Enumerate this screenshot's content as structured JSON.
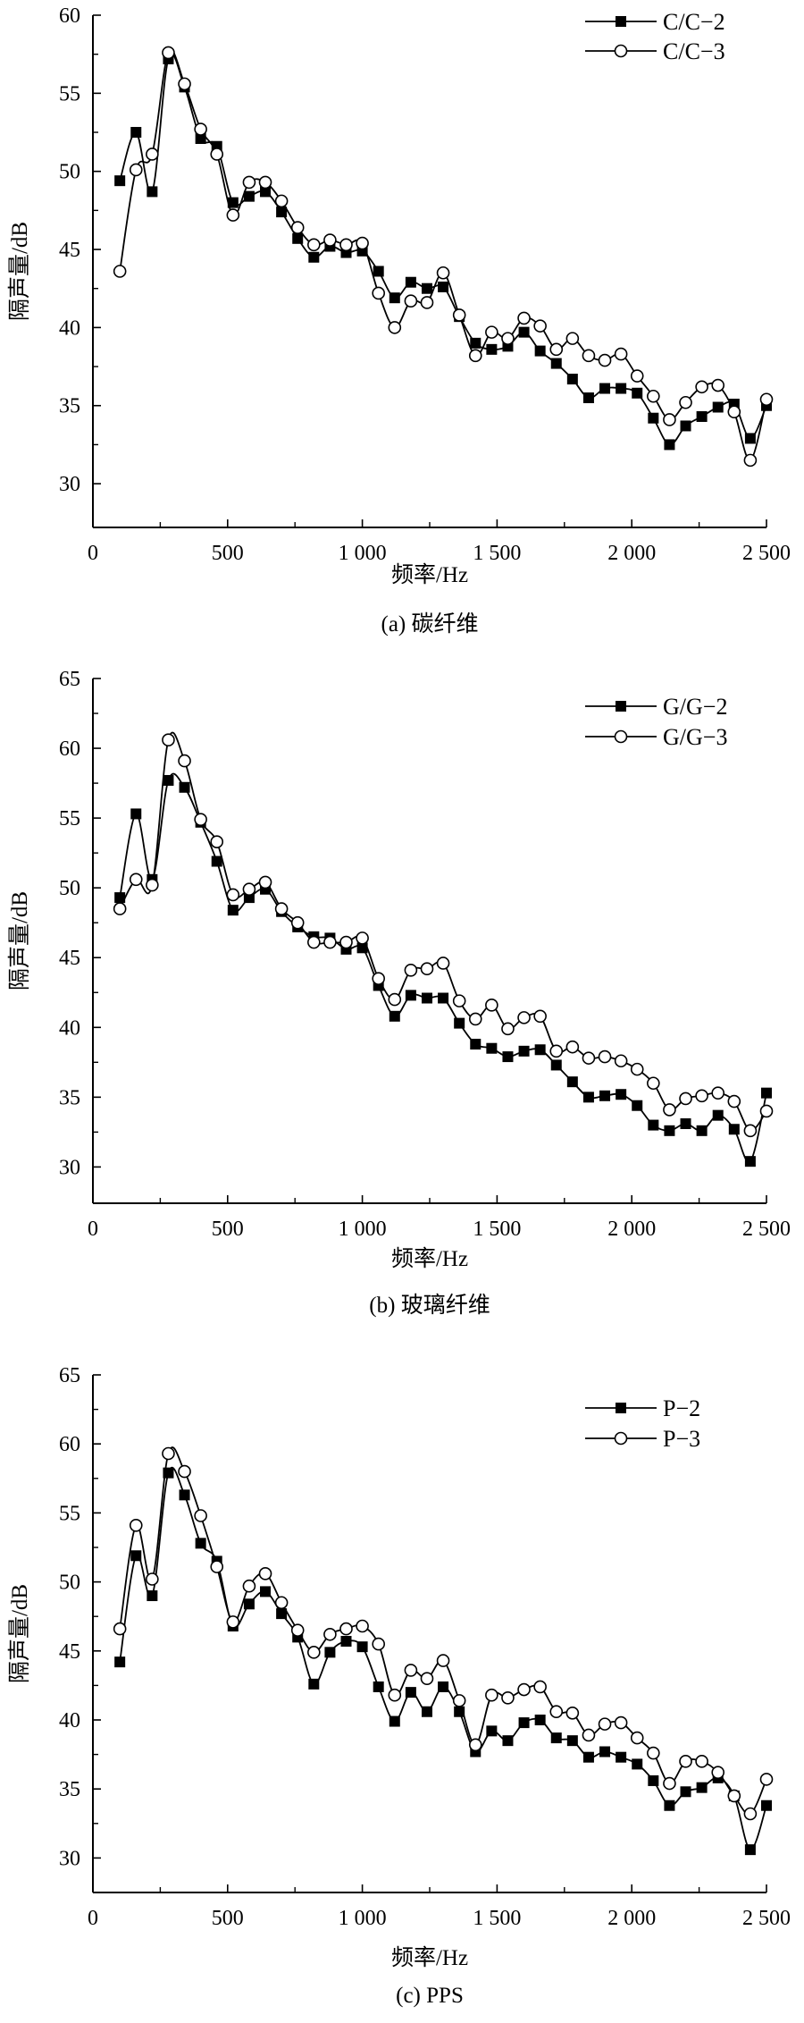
{
  "chart_data": [
    {
      "type": "line",
      "title": "(a) 碳纤维",
      "xlabel": "频率/Hz",
      "ylabel": "隔声量/dB",
      "xlim": [
        0,
        2500
      ],
      "ylim": [
        27.2,
        60
      ],
      "xticks": [
        0,
        500,
        1000,
        1500,
        2000,
        2500
      ],
      "xtick_labels": [
        "0",
        "500",
        "1 000",
        "1 500",
        "2 000",
        "2 500"
      ],
      "yticks": [
        30,
        35,
        40,
        45,
        50,
        55,
        60
      ],
      "ytick_labels": [
        "30",
        "35",
        "40",
        "45",
        "50",
        "55",
        "60"
      ],
      "grid": false,
      "legend": "top-right",
      "x": [
        100,
        160,
        220,
        280,
        340,
        400,
        460,
        520,
        580,
        640,
        700,
        760,
        820,
        880,
        940,
        1000,
        1060,
        1120,
        1180,
        1240,
        1300,
        1360,
        1420,
        1480,
        1540,
        1600,
        1660,
        1720,
        1780,
        1840,
        1900,
        1960,
        2020,
        2080,
        2140,
        2200,
        2260,
        2320,
        2380,
        2440,
        2500
      ],
      "series": [
        {
          "name": "C/C−2",
          "marker": "filled-square",
          "values": [
            49.4,
            52.5,
            48.7,
            57.2,
            55.4,
            52.1,
            51.6,
            48.0,
            48.4,
            48.7,
            47.4,
            45.7,
            44.5,
            45.2,
            44.8,
            44.9,
            43.6,
            41.9,
            42.9,
            42.5,
            42.6,
            40.7,
            39.0,
            38.6,
            38.8,
            39.7,
            38.5,
            37.7,
            36.7,
            35.5,
            36.1,
            36.1,
            35.8,
            34.2,
            32.5,
            33.7,
            34.3,
            34.9,
            35.1,
            32.9,
            35.0
          ]
        },
        {
          "name": "C/C−3",
          "marker": "open-circle",
          "values": [
            43.6,
            50.1,
            51.1,
            57.6,
            55.6,
            52.7,
            51.1,
            47.2,
            49.3,
            49.3,
            48.1,
            46.4,
            45.3,
            45.6,
            45.3,
            45.4,
            42.2,
            40.0,
            41.7,
            41.6,
            43.5,
            40.8,
            38.2,
            39.7,
            39.3,
            40.6,
            40.1,
            38.6,
            39.3,
            38.2,
            37.9,
            38.3,
            36.9,
            35.6,
            34.1,
            35.2,
            36.2,
            36.3,
            34.6,
            31.5,
            35.4
          ]
        }
      ]
    },
    {
      "type": "line",
      "title": "(b) 玻璃纤维",
      "xlabel": "频率/Hz",
      "ylabel": "隔声量/dB",
      "xlim": [
        0,
        2500
      ],
      "ylim": [
        27.4,
        65
      ],
      "xticks": [
        0,
        500,
        1000,
        1500,
        2000,
        2500
      ],
      "xtick_labels": [
        "0",
        "500",
        "1 000",
        "1 500",
        "2 000",
        "2 500"
      ],
      "yticks": [
        30,
        35,
        40,
        45,
        50,
        55,
        60,
        65
      ],
      "ytick_labels": [
        "30",
        "35",
        "40",
        "45",
        "50",
        "55",
        "60",
        "65"
      ],
      "grid": false,
      "legend": "top-right",
      "x": [
        100,
        160,
        220,
        280,
        340,
        400,
        460,
        520,
        580,
        640,
        700,
        760,
        820,
        880,
        940,
        1000,
        1060,
        1120,
        1180,
        1240,
        1300,
        1360,
        1420,
        1480,
        1540,
        1600,
        1660,
        1720,
        1780,
        1840,
        1900,
        1960,
        2020,
        2080,
        2140,
        2200,
        2260,
        2320,
        2380,
        2440,
        2500
      ],
      "series": [
        {
          "name": "G/G−2",
          "marker": "filled-square",
          "values": [
            49.3,
            55.3,
            50.6,
            57.7,
            57.2,
            54.7,
            51.9,
            48.4,
            49.3,
            49.9,
            48.3,
            47.2,
            46.5,
            46.4,
            45.6,
            45.7,
            43.0,
            40.8,
            42.3,
            42.1,
            42.1,
            40.3,
            38.8,
            38.5,
            37.9,
            38.3,
            38.4,
            37.3,
            36.1,
            35.0,
            35.1,
            35.2,
            34.4,
            33.0,
            32.6,
            33.1,
            32.6,
            33.7,
            32.7,
            30.4,
            35.3
          ]
        },
        {
          "name": "G/G−3",
          "marker": "open-circle",
          "values": [
            48.5,
            50.6,
            50.2,
            60.6,
            59.1,
            54.9,
            53.3,
            49.5,
            49.9,
            50.4,
            48.5,
            47.5,
            46.1,
            46.1,
            46.1,
            46.4,
            43.5,
            42.0,
            44.1,
            44.2,
            44.6,
            41.9,
            40.6,
            41.6,
            39.9,
            40.7,
            40.8,
            38.3,
            38.6,
            37.8,
            37.9,
            37.6,
            37.0,
            36.0,
            34.1,
            34.9,
            35.1,
            35.3,
            34.7,
            32.6,
            34.0
          ]
        }
      ]
    },
    {
      "type": "line",
      "title": "(c) PPS",
      "xlabel": "频率/Hz",
      "ylabel": "隔声量/dB",
      "xlim": [
        0,
        2500
      ],
      "ylim": [
        27.5,
        65
      ],
      "xticks": [
        0,
        500,
        1000,
        1500,
        2000,
        2500
      ],
      "xtick_labels": [
        "0",
        "500",
        "1 000",
        "1 500",
        "2 000",
        "2 500"
      ],
      "yticks": [
        30,
        35,
        40,
        45,
        50,
        55,
        60,
        65
      ],
      "ytick_labels": [
        "30",
        "35",
        "40",
        "45",
        "50",
        "55",
        "60",
        "65"
      ],
      "grid": false,
      "legend": "top-right",
      "x": [
        100,
        160,
        220,
        280,
        340,
        400,
        460,
        520,
        580,
        640,
        700,
        760,
        820,
        880,
        940,
        1000,
        1060,
        1120,
        1180,
        1240,
        1300,
        1360,
        1420,
        1480,
        1540,
        1600,
        1660,
        1720,
        1780,
        1840,
        1900,
        1960,
        2020,
        2080,
        2140,
        2200,
        2260,
        2320,
        2380,
        2440,
        2500
      ],
      "series": [
        {
          "name": "P−2",
          "marker": "filled-square",
          "values": [
            44.2,
            51.9,
            49.0,
            57.9,
            56.3,
            52.8,
            51.5,
            46.8,
            48.4,
            49.3,
            47.7,
            46.0,
            42.6,
            44.9,
            45.7,
            45.3,
            42.4,
            39.9,
            42.0,
            40.6,
            42.4,
            40.6,
            37.7,
            39.2,
            38.5,
            39.8,
            40.0,
            38.7,
            38.5,
            37.3,
            37.7,
            37.3,
            36.8,
            35.6,
            33.8,
            34.8,
            35.1,
            35.8,
            34.5,
            30.6,
            33.8
          ]
        },
        {
          "name": "P−3",
          "marker": "open-circle",
          "values": [
            46.6,
            54.1,
            50.2,
            59.3,
            58.0,
            54.8,
            51.1,
            47.1,
            49.7,
            50.6,
            48.5,
            46.5,
            44.9,
            46.2,
            46.6,
            46.8,
            45.5,
            41.8,
            43.6,
            43.0,
            44.3,
            41.4,
            38.2,
            41.8,
            41.6,
            42.2,
            42.4,
            40.6,
            40.5,
            38.9,
            39.7,
            39.8,
            38.7,
            37.6,
            35.4,
            37.0,
            37.0,
            36.2,
            34.5,
            33.2,
            35.7
          ]
        }
      ]
    }
  ]
}
